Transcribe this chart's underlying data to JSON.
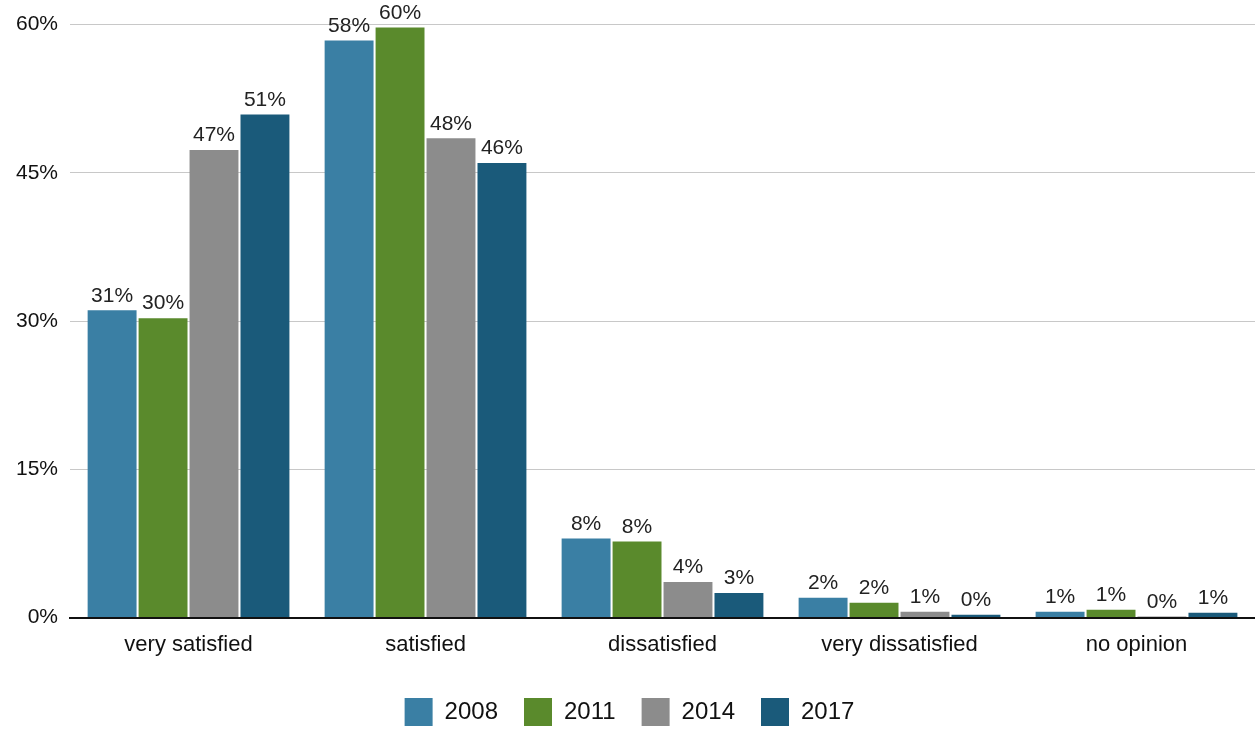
{
  "chart_data": {
    "type": "bar",
    "categories": [
      "very satisfied",
      "satisfied",
      "dissatisfied",
      "very dissatisfied",
      "no opinion"
    ],
    "series": [
      {
        "name": "2008",
        "color": "#3a7fa4",
        "values": [
          31.1,
          58.4,
          8.0,
          2.0,
          0.6
        ],
        "value_labels": [
          "31%",
          "58%",
          "8%",
          "2%",
          "1%"
        ]
      },
      {
        "name": "2011",
        "color": "#5a8a2c",
        "values": [
          30.3,
          59.7,
          7.7,
          1.5,
          0.8
        ],
        "value_labels": [
          "30%",
          "60%",
          "8%",
          "2%",
          "1%"
        ]
      },
      {
        "name": "2014",
        "color": "#8c8c8c",
        "values": [
          47.3,
          48.5,
          3.6,
          0.6,
          0.1
        ],
        "value_labels": [
          "47%",
          "48%",
          "4%",
          "1%",
          "0%"
        ]
      },
      {
        "name": "2017",
        "color": "#1a5a7a",
        "values": [
          50.9,
          46.0,
          2.5,
          0.3,
          0.5
        ],
        "value_labels": [
          "51%",
          "46%",
          "3%",
          "0%",
          "1%"
        ]
      }
    ],
    "ylim": [
      0,
      60
    ],
    "yticks": [
      {
        "value": 0,
        "label": "0%"
      },
      {
        "value": 15,
        "label": "15%"
      },
      {
        "value": 30,
        "label": "30%"
      },
      {
        "value": 45,
        "label": "45%"
      },
      {
        "value": 60,
        "label": "60%"
      }
    ],
    "grid": "y",
    "legend": "bottom"
  }
}
